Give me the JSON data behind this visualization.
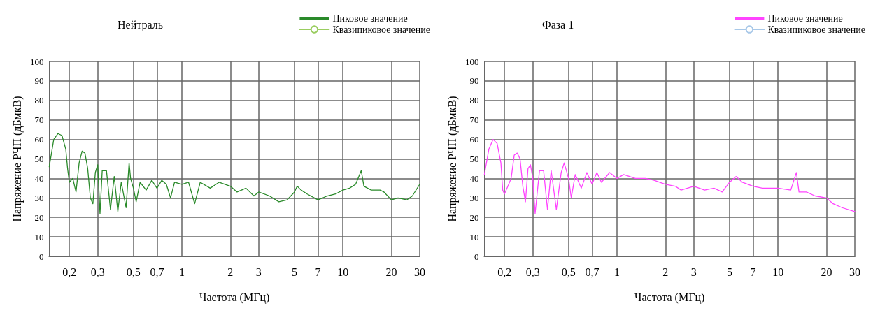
{
  "chart_data": [
    {
      "type": "line",
      "title": "Нейтраль",
      "xlabel": "Частота (МГц)",
      "ylabel": "Напряжение РЧП (дБмкВ)",
      "log": "x",
      "grid": true,
      "legend": "top right",
      "xlim": [
        0.15,
        30
      ],
      "ylim": [
        0,
        100
      ],
      "xticks": [
        {
          "value": 0.2,
          "label": "0,2"
        },
        {
          "value": 0.3,
          "label": "0,3"
        },
        {
          "value": 0.5,
          "label": "0,5"
        },
        {
          "value": 0.7,
          "label": "0,7"
        },
        1,
        2,
        3,
        5,
        7,
        10,
        20,
        30
      ],
      "yticks": [
        0,
        10,
        20,
        30,
        40,
        50,
        60,
        70,
        80,
        90,
        100
      ],
      "x": [
        0.15,
        0.16,
        0.17,
        0.18,
        0.19,
        0.195,
        0.2,
        0.21,
        0.22,
        0.23,
        0.24,
        0.25,
        0.26,
        0.27,
        0.28,
        0.29,
        0.3,
        0.31,
        0.32,
        0.34,
        0.36,
        0.38,
        0.4,
        0.42,
        0.45,
        0.47,
        0.48,
        0.5,
        0.52,
        0.55,
        0.6,
        0.65,
        0.7,
        0.75,
        0.8,
        0.85,
        0.9,
        1.0,
        1.1,
        1.2,
        1.3,
        1.5,
        1.7,
        2.0,
        2.2,
        2.5,
        2.8,
        3.0,
        3.5,
        4.0,
        4.5,
        5.0,
        5.2,
        5.5,
        6.0,
        7.0,
        8.0,
        9.0,
        10,
        11,
        12,
        13,
        13.5,
        15,
        17,
        18,
        20,
        22,
        25,
        27,
        30
      ],
      "series": [
        {
          "name": "Пиковое значение",
          "color": "#2a8a2a",
          "marker": "none",
          "values": [
            46,
            60,
            63,
            62,
            55,
            45,
            38,
            40,
            33,
            48,
            54,
            53,
            45,
            30,
            27,
            43,
            47,
            22,
            44,
            44,
            24,
            41,
            23,
            38,
            25,
            48,
            40,
            35,
            28,
            38,
            34,
            39,
            35,
            39,
            37,
            30,
            38,
            37,
            38,
            27,
            38,
            35,
            38,
            36,
            33,
            35,
            31,
            33,
            31,
            28,
            29,
            33,
            36,
            34,
            32,
            29,
            31,
            32,
            34,
            35,
            37,
            44,
            36,
            34,
            34,
            33,
            29,
            30,
            29,
            31,
            37
          ]
        },
        {
          "name": "Квазипиковое значение",
          "color": "#9acd60",
          "marker": "circle",
          "values": [
            null,
            null,
            null,
            null,
            null,
            null,
            null,
            null,
            null,
            null,
            null,
            null,
            null,
            null,
            null,
            null,
            null,
            null,
            null,
            null,
            null,
            null,
            null,
            null,
            null,
            null,
            null,
            null,
            null,
            null,
            null,
            null,
            null,
            null,
            null,
            null,
            null,
            null,
            null,
            null,
            null,
            null,
            null,
            null,
            null,
            null,
            null,
            null,
            null,
            null,
            null,
            null,
            null,
            null,
            null,
            null,
            null,
            null,
            null,
            null,
            null,
            null,
            null,
            null,
            null,
            null,
            null,
            null,
            null,
            null,
            null
          ]
        }
      ]
    },
    {
      "type": "line",
      "title": "Фаза 1",
      "xlabel": "Частота (МГц)",
      "ylabel": "Напряжение РЧП (дБмкВ)",
      "log": "x",
      "grid": true,
      "legend": "top right",
      "xlim": [
        0.15,
        30
      ],
      "ylim": [
        0,
        100
      ],
      "xticks": [
        {
          "value": 0.2,
          "label": "0,2"
        },
        {
          "value": 0.3,
          "label": "0,3"
        },
        {
          "value": 0.5,
          "label": "0,5"
        },
        {
          "value": 0.7,
          "label": "0,7"
        },
        1,
        2,
        3,
        5,
        7,
        10,
        20,
        30
      ],
      "yticks": [
        0,
        10,
        20,
        30,
        40,
        50,
        60,
        70,
        80,
        90,
        100
      ],
      "x": [
        0.15,
        0.16,
        0.17,
        0.18,
        0.19,
        0.195,
        0.2,
        0.21,
        0.22,
        0.23,
        0.24,
        0.25,
        0.26,
        0.27,
        0.28,
        0.29,
        0.3,
        0.31,
        0.33,
        0.35,
        0.37,
        0.39,
        0.42,
        0.45,
        0.47,
        0.5,
        0.52,
        0.55,
        0.6,
        0.65,
        0.7,
        0.75,
        0.8,
        0.9,
        1.0,
        1.1,
        1.3,
        1.5,
        1.7,
        2.0,
        2.3,
        2.5,
        3.0,
        3.5,
        4.0,
        4.5,
        5.0,
        5.5,
        6,
        7,
        8,
        10,
        12,
        13,
        13.5,
        15,
        17,
        20,
        22,
        25,
        30
      ],
      "series": [
        {
          "name": "Пиковое значение",
          "color": "#ff44ff",
          "marker": "none",
          "values": [
            42,
            55,
            60,
            58,
            48,
            34,
            32,
            36,
            40,
            52,
            53,
            50,
            36,
            28,
            45,
            47,
            40,
            22,
            44,
            44,
            24,
            44,
            24,
            43,
            48,
            40,
            30,
            42,
            35,
            43,
            37,
            43,
            38,
            43,
            40,
            42,
            40,
            40,
            39,
            37,
            36,
            34,
            36,
            34,
            35,
            33,
            38,
            41,
            38,
            36,
            35,
            35,
            34,
            43,
            33,
            33,
            31,
            30,
            27,
            25,
            23
          ]
        },
        {
          "name": "Квазипиковое значение",
          "color": "#a8c8e8",
          "marker": "circle",
          "values": [
            null,
            null,
            null,
            null,
            null,
            null,
            null,
            null,
            null,
            null,
            null,
            null,
            null,
            null,
            null,
            null,
            null,
            null,
            null,
            null,
            null,
            null,
            null,
            null,
            null,
            null,
            null,
            null,
            null,
            null,
            null,
            null,
            null,
            null,
            null,
            null,
            null,
            null,
            null,
            null,
            null,
            null,
            null,
            null,
            null,
            null,
            null,
            null,
            null,
            null,
            null,
            null,
            null,
            null,
            null,
            null,
            null,
            null,
            null,
            null,
            null
          ]
        }
      ]
    }
  ]
}
